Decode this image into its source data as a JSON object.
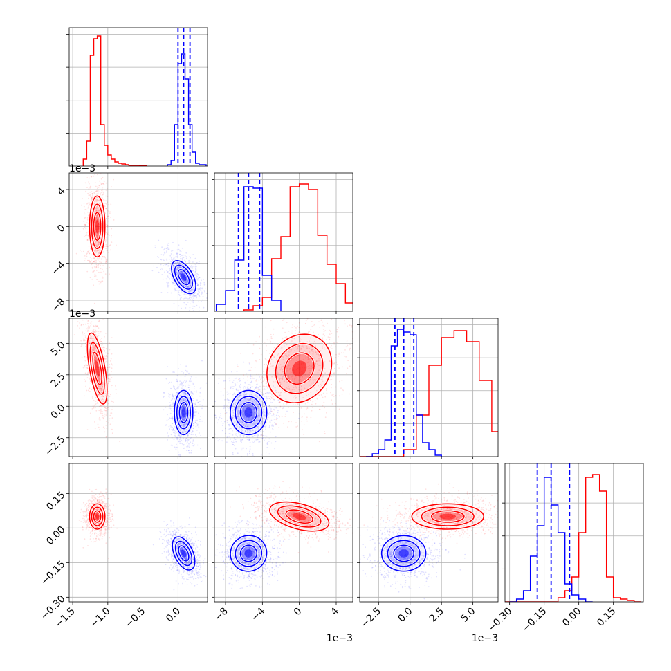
{
  "chart_data": {
    "type": "corner",
    "grid": true,
    "offset_label": "1e−3",
    "series": [
      {
        "name": "",
        "color": "#ff0000",
        "hist": [
          {
            "bins": [
              -1.35,
              -1.3,
              -1.25,
              -1.2,
              -1.15,
              -1.1,
              -1.05,
              -1.0,
              -0.95,
              -0.9,
              -0.85,
              -0.8,
              -0.75,
              -0.7,
              -0.65,
              -0.6,
              -0.55,
              -0.5,
              -0.45
            ],
            "counts": [
              0.05,
              0.18,
              0.8,
              0.92,
              0.94,
              0.3,
              0.15,
              0.08,
              0.05,
              0.03,
              0.02,
              0.015,
              0.01,
              0.005,
              0.005,
              0.005,
              0.003,
              0.002
            ]
          },
          {
            "bins": [
              -8,
              -7,
              -6,
              -5,
              -4,
              -3,
              -2,
              -1,
              0,
              1,
              2,
              3,
              4,
              5,
              6
            ],
            "counts": [
              0.0,
              0.0,
              0.01,
              0.04,
              0.1,
              0.38,
              0.54,
              0.9,
              0.92,
              0.88,
              0.55,
              0.34,
              0.2,
              0.06,
              0.05
            ]
          },
          {
            "bins": [
              -4.5,
              -3.5,
              -2.5,
              -1.5,
              -0.5,
              0.5,
              1.5,
              2.5,
              3.5,
              4.5,
              5.5,
              6.5,
              7.5
            ],
            "counts": [
              0.0,
              0.0,
              0.0,
              0.0,
              0.05,
              0.3,
              0.66,
              0.86,
              0.91,
              0.83,
              0.55,
              0.18,
              0.05
            ]
          },
          {
            "bins": [
              -0.33,
              -0.3,
              -0.27,
              -0.24,
              -0.21,
              -0.18,
              -0.15,
              -0.12,
              -0.09,
              -0.06,
              -0.03,
              0.0,
              0.03,
              0.06,
              0.09,
              0.12,
              0.15,
              0.18,
              0.21,
              0.24,
              0.27
            ],
            "counts": [
              0,
              0,
              0,
              0,
              0,
              0,
              0,
              0,
              0.03,
              0.08,
              0.18,
              0.5,
              0.9,
              0.92,
              0.8,
              0.18,
              0.03,
              0.02,
              0.01,
              0
            ]
          }
        ],
        "centers": [
          -1.15,
          0.0,
          3.0,
          0.05
        ],
        "stds": [
          0.05,
          1.5,
          1.3,
          0.025
        ],
        "quantiles": []
      },
      {
        "name": "",
        "color": "#0000ff",
        "hist": [
          {
            "bins": [
              -0.15,
              -0.1,
              -0.05,
              0.0,
              0.05,
              0.1,
              0.15,
              0.2,
              0.25,
              0.3,
              0.35,
              0.4
            ],
            "counts": [
              0.01,
              0.04,
              0.3,
              0.74,
              0.81,
              0.63,
              0.3,
              0.1,
              0.02,
              0.01,
              0.01
            ]
          },
          {
            "bins": [
              -9,
              -8,
              -7,
              -6,
              -5,
              -4,
              -3,
              -2
            ],
            "counts": [
              0.05,
              0.15,
              0.37,
              0.9,
              0.89,
              0.26,
              0.08
            ]
          },
          {
            "bins": [
              -3.5,
              -3.0,
              -2.5,
              -2.0,
              -1.5,
              -1.0,
              -0.5,
              0.0,
              0.5,
              1.0,
              1.5,
              2.0,
              2.5
            ],
            "counts": [
              0.0,
              0.02,
              0.05,
              0.12,
              0.8,
              0.92,
              0.9,
              0.88,
              0.3,
              0.1,
              0.05,
              0.01
            ]
          },
          {
            "bins": [
              -0.3,
              -0.27,
              -0.24,
              -0.21,
              -0.18,
              -0.15,
              -0.12,
              -0.09,
              -0.06,
              -0.03,
              0.0,
              0.03,
              0.06
            ],
            "counts": [
              0,
              0.02,
              0.08,
              0.33,
              0.55,
              0.9,
              0.7,
              0.5,
              0.13,
              0.05,
              0.02,
              0
            ]
          }
        ],
        "centers": [
          0.08,
          -5.5,
          -0.5,
          -0.11
        ],
        "stds": [
          0.06,
          0.9,
          0.8,
          0.035
        ],
        "quantiles": [
          [
            0.0,
            0.08,
            0.17
          ],
          [
            -6.6,
            -5.5,
            -4.3
          ],
          [
            -1.2,
            -0.5,
            0.3
          ],
          [
            -0.18,
            -0.12,
            -0.04
          ]
        ]
      }
    ],
    "axes": [
      {
        "range": [
          -1.55,
          0.42
        ],
        "ticks": [
          -1.5,
          -1.0,
          -0.5,
          0.0
        ],
        "tick_labels": [
          "−1.5",
          "−1.0",
          "−0.5",
          "0.0"
        ],
        "offset": ""
      },
      {
        "range": [
          -9.2,
          5.8
        ],
        "ticks": [
          -8,
          -4,
          0,
          4
        ],
        "tick_labels": [
          "−8",
          "−4",
          "0",
          "4"
        ],
        "offset": "1e−3"
      },
      {
        "range": [
          -4.0,
          7.0
        ],
        "ticks": [
          -2.5,
          0.0,
          2.5,
          5.0
        ],
        "tick_labels": [
          "−2.5",
          "0.0",
          "2.5",
          "5.0"
        ],
        "offset": "1e−3"
      },
      {
        "range": [
          -0.32,
          0.28
        ],
        "ticks": [
          -0.3,
          -0.15,
          0.0,
          0.15
        ],
        "tick_labels": [
          "−0.30",
          "−0.15",
          "0.00",
          "0.15"
        ],
        "offset": ""
      }
    ]
  }
}
